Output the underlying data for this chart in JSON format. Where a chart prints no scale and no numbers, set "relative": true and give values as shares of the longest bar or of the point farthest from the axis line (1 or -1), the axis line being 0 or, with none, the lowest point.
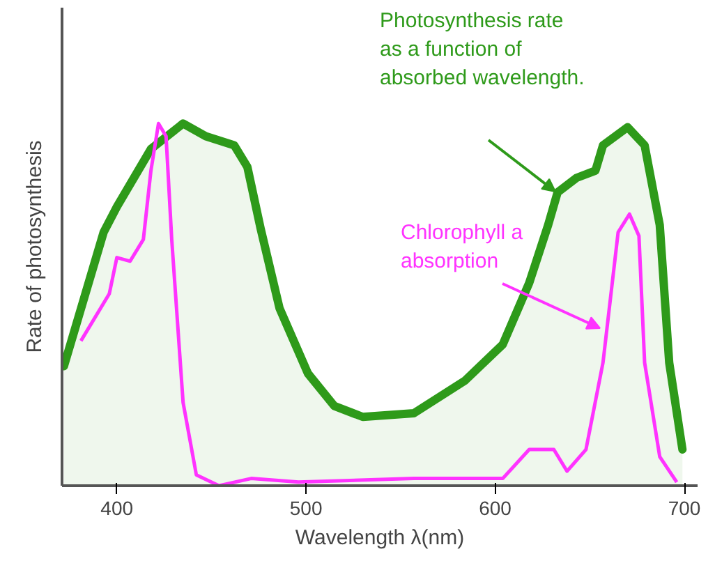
{
  "chart_data": {
    "type": "line",
    "relative": true,
    "xlabel": "Wavelength λ(nm)",
    "ylabel": "Rate of photosynthesis",
    "xlim": [
      371,
      707
    ],
    "xticks": [
      400,
      500,
      600,
      700
    ],
    "grid": false,
    "marker": "none",
    "series": [
      {
        "type": "area",
        "color": "#2e9a1a",
        "x": [
          372,
          393,
          400,
          418,
          435,
          447,
          462,
          469,
          476,
          486,
          501,
          515,
          530,
          557,
          584,
          604,
          618,
          628,
          633,
          643,
          653,
          657,
          670,
          679,
          687,
          692,
          699
        ],
        "values": [
          0.33,
          0.7,
          0.77,
          0.93,
          1.0,
          0.965,
          0.94,
          0.88,
          0.71,
          0.49,
          0.31,
          0.22,
          0.19,
          0.2,
          0.29,
          0.39,
          0.56,
          0.72,
          0.81,
          0.85,
          0.87,
          0.94,
          0.99,
          0.94,
          0.72,
          0.34,
          0.1
        ]
      },
      {
        "color": "#ff33ff",
        "x": [
          381,
          396,
          400,
          407,
          414,
          418,
          422,
          426,
          429,
          435,
          442,
          454,
          471,
          496,
          557,
          604,
          618,
          631,
          638,
          648,
          657,
          665,
          671,
          676,
          679,
          687,
          696
        ],
        "values": [
          0.4,
          0.53,
          0.63,
          0.62,
          0.68,
          0.87,
          1.0,
          0.965,
          0.68,
          0.23,
          0.03,
          0.0,
          0.02,
          0.01,
          0.02,
          0.02,
          0.1,
          0.1,
          0.04,
          0.1,
          0.34,
          0.7,
          0.75,
          0.69,
          0.34,
          0.08,
          0.01
        ]
      }
    ],
    "annotations": [
      "Photosynthesis rate\nas a function of\nabsorbed wavelength.",
      "Chlorophyll a\nabsorption"
    ]
  }
}
